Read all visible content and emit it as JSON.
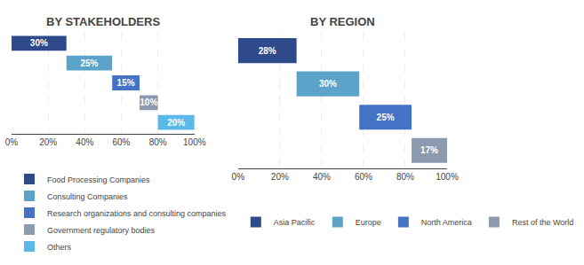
{
  "chart_data": [
    {
      "type": "bar",
      "orientation": "horizontal",
      "stacked": true,
      "title": "BY STAKEHOLDERS",
      "series": [
        {
          "name": "Food Processing Companies",
          "color": "#2e4a8a",
          "values": [
            30
          ],
          "value_labels": [
            "30%"
          ]
        },
        {
          "name": "Consulting Companies",
          "color": "#5ba3c9",
          "values": [
            25
          ],
          "value_labels": [
            "25%"
          ]
        },
        {
          "name": "Research organizations and consulting companies",
          "color": "#4472c4",
          "values": [
            15
          ],
          "value_labels": [
            "15%"
          ]
        },
        {
          "name": "Government regulatory bodies",
          "color": "#8c9ab0",
          "values": [
            10
          ],
          "value_labels": [
            "10%"
          ]
        },
        {
          "name": "Others",
          "color": "#5bb8e8",
          "values": [
            20
          ],
          "value_labels": [
            "20%"
          ]
        }
      ],
      "xlim": [
        0,
        100
      ],
      "xticks": [
        {
          "value": 0,
          "label": "0%"
        },
        {
          "value": 20,
          "label": "20%"
        },
        {
          "value": 40,
          "label": "40%"
        },
        {
          "value": 60,
          "label": "60%"
        },
        {
          "value": 80,
          "label": "80%"
        },
        {
          "value": 100,
          "label": "100%"
        }
      ],
      "grid": true,
      "data_labels": true,
      "tick_labels": "x",
      "legend": "bottom"
    },
    {
      "type": "bar",
      "orientation": "horizontal",
      "stacked": true,
      "title": "BY REGION",
      "series": [
        {
          "name": "Asia Pacific",
          "color": "#2e4a8a",
          "values": [
            28
          ],
          "value_labels": [
            "28%"
          ]
        },
        {
          "name": "Europe",
          "color": "#5ba3c9",
          "values": [
            30
          ],
          "value_labels": [
            "30%"
          ]
        },
        {
          "name": "North America",
          "color": "#4472c4",
          "values": [
            25
          ],
          "value_labels": [
            "25%"
          ]
        },
        {
          "name": "Rest of the World",
          "color": "#8c9ab0",
          "values": [
            17
          ],
          "value_labels": [
            "17%"
          ]
        }
      ],
      "xlim": [
        0,
        100
      ],
      "xticks": [
        {
          "value": 0,
          "label": "0%"
        },
        {
          "value": 20,
          "label": "20%"
        },
        {
          "value": 40,
          "label": "40%"
        },
        {
          "value": 60,
          "label": "60%"
        },
        {
          "value": 80,
          "label": "80%"
        },
        {
          "value": 100,
          "label": "100%"
        }
      ],
      "grid": true,
      "data_labels": true,
      "tick_labels": "x",
      "legend": "bottom"
    }
  ]
}
